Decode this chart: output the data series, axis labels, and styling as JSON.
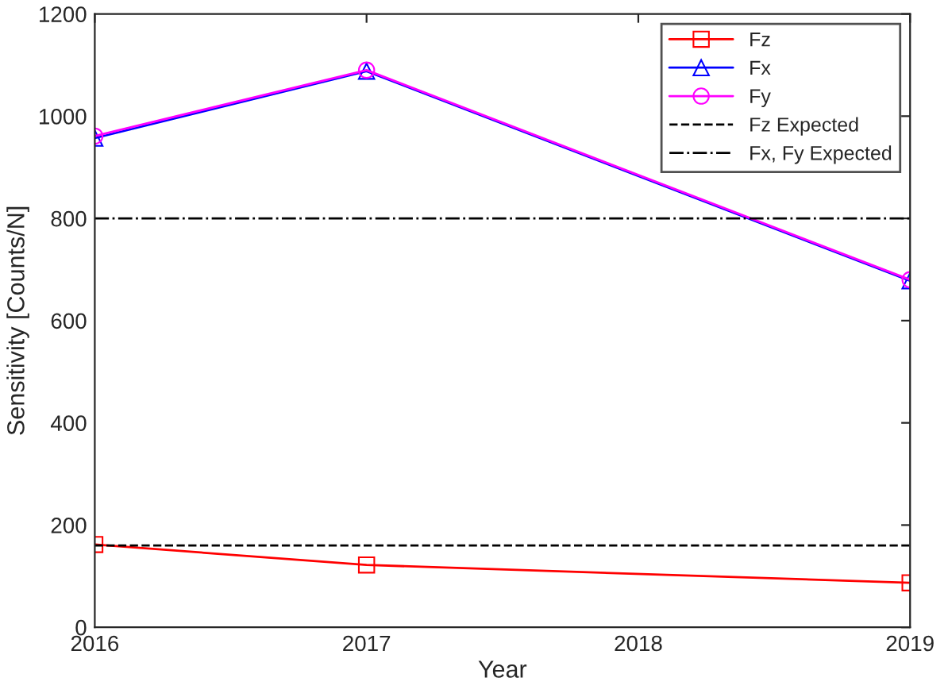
{
  "chart_data": {
    "type": "line",
    "xlabel": "Year",
    "ylabel": "Sensitivity [Counts/N]",
    "x": [
      2016,
      2017,
      2019
    ],
    "series": [
      {
        "name": "Fz",
        "color": "#ff0000",
        "marker": "square",
        "values": [
          162,
          122,
          87
        ]
      },
      {
        "name": "Fx",
        "color": "#0000ff",
        "marker": "triangle",
        "values": [
          957,
          1088,
          678
        ]
      },
      {
        "name": "Fy",
        "color": "#ff00ff",
        "marker": "circle",
        "values": [
          961,
          1090,
          680
        ]
      }
    ],
    "ref_lines": [
      {
        "axis": "y",
        "value": 160,
        "label": "Fz Expected",
        "color": "#000000",
        "line_style": "dashed"
      },
      {
        "axis": "y",
        "value": 800,
        "label": "Fx, Fy Expected",
        "color": "#000000",
        "line_style": "dashdot"
      }
    ],
    "xlim": [
      2016,
      2019
    ],
    "xticks": [
      2016,
      2017,
      2018,
      2019
    ],
    "ylim": [
      0,
      1200
    ],
    "yticks": [
      0,
      200,
      400,
      600,
      800,
      1000,
      1200
    ],
    "grid": false,
    "legend": "top right"
  }
}
